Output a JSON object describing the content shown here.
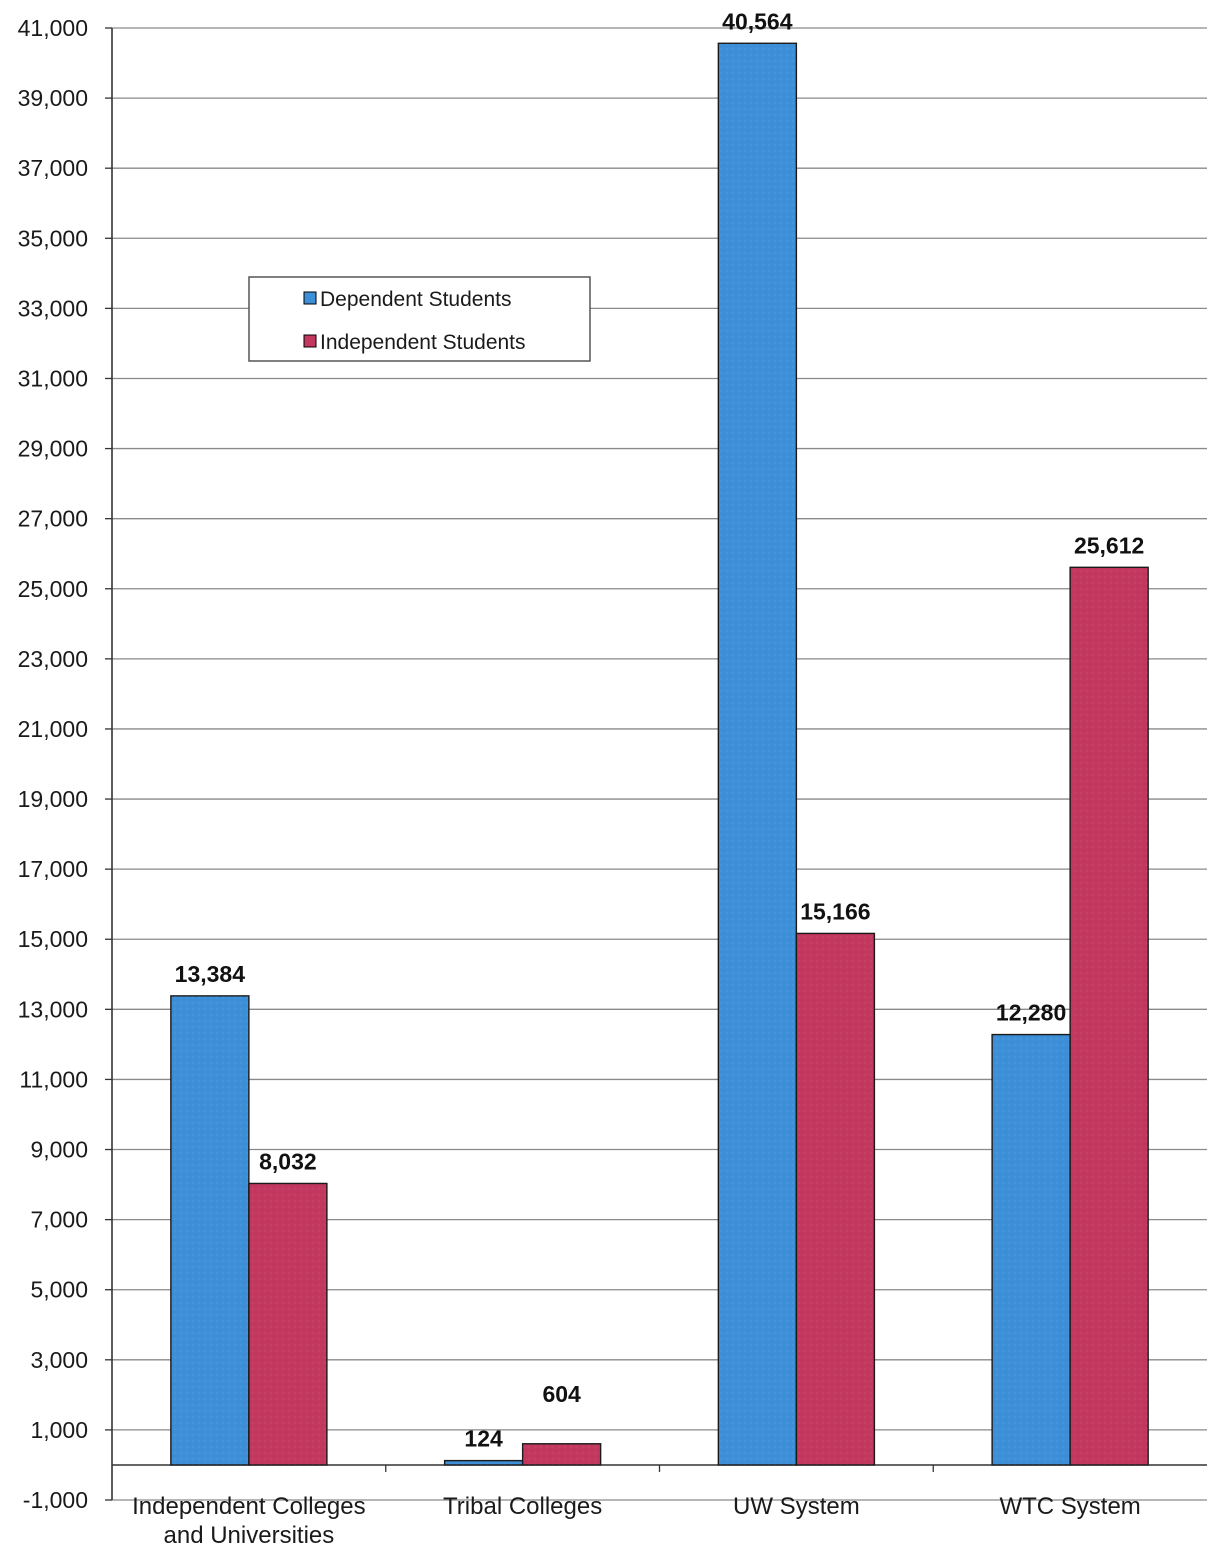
{
  "chart_data": {
    "type": "bar",
    "categories": [
      "Independent Colleges and Universities",
      "Tribal Colleges",
      "UW System",
      "WTC System"
    ],
    "category_lines": [
      [
        "Independent Colleges",
        "and Universities"
      ],
      [
        "Tribal Colleges"
      ],
      [
        "UW System"
      ],
      [
        "WTC System"
      ]
    ],
    "series": [
      {
        "name": "Dependent Students",
        "values": [
          13384,
          124,
          40564,
          12280
        ],
        "labels": [
          "13,384",
          "124",
          "40,564",
          "12,280"
        ],
        "color": "#3d8fd8"
      },
      {
        "name": "Independent Students",
        "values": [
          8032,
          604,
          15166,
          25612
        ],
        "labels": [
          "8,032",
          "604",
          "15,166",
          "25,612"
        ],
        "color": "#c2385f"
      }
    ],
    "yticks": [
      -1000,
      1000,
      3000,
      5000,
      7000,
      9000,
      11000,
      13000,
      15000,
      17000,
      19000,
      21000,
      23000,
      25000,
      27000,
      29000,
      31000,
      33000,
      35000,
      37000,
      39000,
      41000
    ],
    "ytick_labels": [
      "-1,000",
      "1,000",
      "3,000",
      "5,000",
      "7,000",
      "9,000",
      "11,000",
      "13,000",
      "15,000",
      "17,000",
      "19,000",
      "21,000",
      "23,000",
      "25,000",
      "27,000",
      "29,000",
      "31,000",
      "33,000",
      "35,000",
      "37,000",
      "39,000",
      "41,000"
    ],
    "ylim": [
      -1000,
      41000
    ],
    "grid": true,
    "legend_position": "upper-left",
    "title": "",
    "xlabel": "",
    "ylabel": ""
  }
}
